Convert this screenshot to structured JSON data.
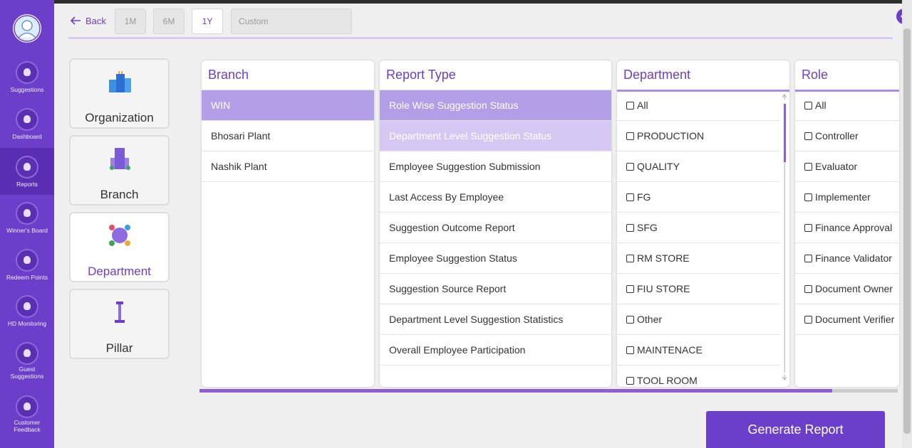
{
  "sidebar": {
    "items": [
      "Suggestions",
      "Dashboard",
      "Reports",
      "Winner's Board",
      "Redeem Points",
      "HD Monitoring",
      "Guest Suggestions",
      "Customer Feedback"
    ]
  },
  "toolbar": {
    "back": "Back",
    "periods": [
      "1M",
      "6M",
      "1Y"
    ],
    "custom_placeholder": "Custom"
  },
  "categories": [
    "Organization",
    "Branch",
    "Department",
    "Pillar"
  ],
  "columns": [
    {
      "title": "Branch",
      "items": [
        "WIN",
        "Bhosari Plant",
        "Nashik Plant"
      ]
    },
    {
      "title": "Report Type",
      "items": [
        "Role Wise Suggestion Status",
        "Department Level Suggestion Status",
        "Employee Suggestion Submission",
        "Last Access By Employee",
        "Suggestion Outcome Report",
        "Employee Suggestion Status",
        "Suggestion Source Report",
        "Department Level Suggestion Statistics",
        "Overall Employee Participation"
      ]
    },
    {
      "title": "Department",
      "items": [
        "All",
        "PRODUCTION",
        "QUALITY",
        "FG",
        "SFG",
        "RM STORE",
        "FIU STORE",
        "Other",
        "MAINTENACE",
        "TOOL ROOM"
      ]
    },
    {
      "title": "Role",
      "items": [
        "All",
        "Controller",
        "Evaluator",
        "Implementer",
        "Finance Approval",
        "Finance Validator",
        "Document Owner",
        "Document Verifier"
      ]
    }
  ],
  "generate_button": "Generate Report"
}
